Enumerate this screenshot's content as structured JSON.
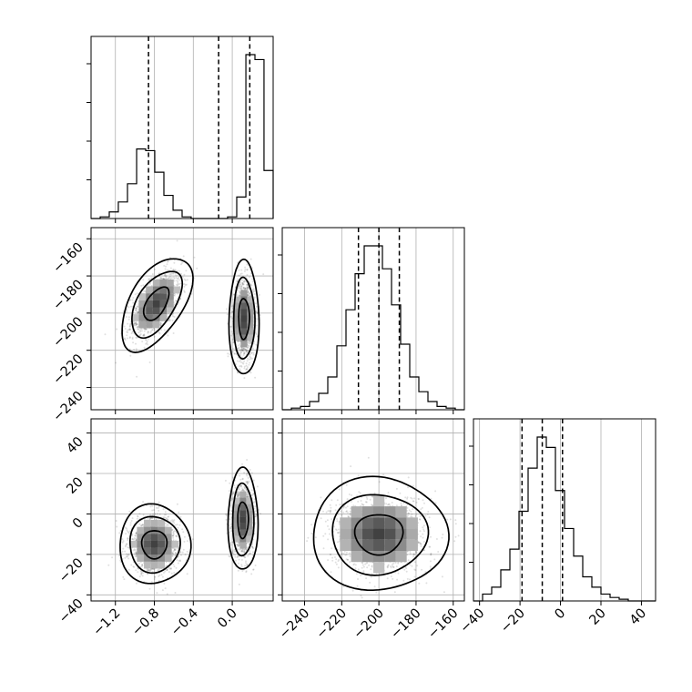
{
  "chart_data": {
    "type": "corner",
    "parameters": [
      {
        "ticks": [
          -1.2,
          -0.8,
          -0.4,
          0.0
        ],
        "tick_labels": [
          "−1.2",
          "−0.8",
          "−0.4",
          "0.0"
        ],
        "range": [
          -1.45,
          0.42
        ],
        "quantiles": [
          -0.86,
          -0.14,
          0.18
        ],
        "histogram": {
          "edges": [
            -1.45,
            -1.356,
            -1.263,
            -1.17,
            -1.076,
            -0.982,
            -0.889,
            -0.796,
            -0.702,
            -0.608,
            -0.515,
            -0.422,
            -0.328,
            -0.234,
            -0.141,
            -0.048,
            0.046,
            0.14,
            0.233,
            0.326,
            0.42
          ],
          "counts": [
            0,
            1,
            4,
            10,
            21,
            42,
            41,
            28,
            14,
            5,
            1,
            0,
            0,
            0,
            0,
            1,
            13,
            99,
            96,
            29,
            0
          ]
        }
      },
      {
        "ticks": [
          -240,
          -220,
          -200,
          -180,
          -160
        ],
        "tick_labels": [
          "−240",
          "−220",
          "−200",
          "−180",
          "−160"
        ],
        "range": [
          -252,
          -154
        ],
        "quantiles": [
          -211,
          -200,
          -189
        ],
        "histogram": {
          "edges": [
            -252,
            -247.1,
            -242.2,
            -237.3,
            -232.4,
            -227.5,
            -222.6,
            -217.7,
            -212.8,
            -207.9,
            -203,
            -198.1,
            -193.2,
            -188.3,
            -183.4,
            -178.5,
            -173.6,
            -168.7,
            -163.8,
            -158.9,
            -154
          ],
          "counts": [
            0,
            1,
            2,
            5,
            10,
            20,
            39,
            61,
            83,
            100,
            100,
            86,
            64,
            40,
            20,
            11,
            5,
            2,
            1,
            0
          ]
        }
      },
      {
        "ticks": [
          -40,
          -20,
          0,
          20,
          40
        ],
        "tick_labels": [
          "−40",
          "−20",
          "0",
          "20",
          "40"
        ],
        "range": [
          -43,
          47
        ],
        "quantiles": [
          -19,
          -9,
          1
        ],
        "histogram": {
          "edges": [
            -43,
            -38.5,
            -34,
            -29.5,
            -25,
            -20.5,
            -16,
            -11.5,
            -7,
            -2.5,
            2,
            6.5,
            11,
            15.5,
            20,
            24.5,
            29,
            33.5,
            38,
            42.5,
            47
          ],
          "counts": [
            0,
            4,
            8,
            18,
            30,
            52,
            77,
            95,
            89,
            64,
            42,
            26,
            14,
            8,
            4,
            2,
            1,
            0,
            0,
            0
          ]
        }
      }
    ],
    "pair_panels": [
      {
        "x_param": 0,
        "y_param": 1,
        "blobs": [
          {
            "center": [
              -0.78,
              -195
            ],
            "sd": [
              0.13,
              9
            ],
            "corr": 0.55
          },
          {
            "center": [
              0.12,
              -203
            ],
            "sd": [
              0.055,
              11
            ],
            "corr": 0.0
          }
        ]
      },
      {
        "x_param": 0,
        "y_param": 2,
        "blobs": [
          {
            "center": [
              -0.8,
              -15
            ],
            "sd": [
              0.13,
              7
            ],
            "corr": 0.0
          },
          {
            "center": [
              0.11,
              -3
            ],
            "sd": [
              0.055,
              9
            ],
            "corr": 0.0
          }
        ]
      },
      {
        "x_param": 1,
        "y_param": 2,
        "blobs": [
          {
            "center": [
              -200,
              -10
            ],
            "sd": [
              13,
              10
            ],
            "corr": 0.0
          }
        ]
      }
    ],
    "grid": true,
    "density_levels": [
      0.39,
      0.86,
      0.98
    ]
  }
}
